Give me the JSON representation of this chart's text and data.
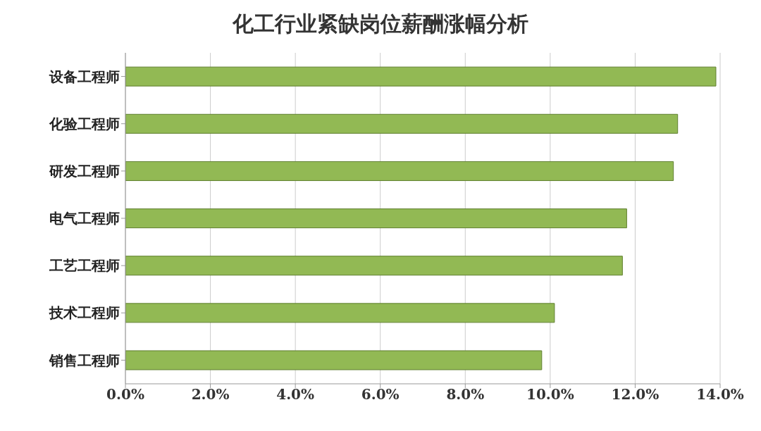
{
  "chart_data": {
    "type": "bar",
    "orientation": "horizontal",
    "title": "化工行业紧缺岗位薪酬涨幅分析",
    "categories": [
      "设备工程师",
      "化验工程师",
      "研发工程师",
      "电气工程师",
      "工艺工程师",
      "技术工程师",
      "销售工程师"
    ],
    "values": [
      13.9,
      13.0,
      12.9,
      11.8,
      11.7,
      10.1,
      9.8
    ],
    "color": "#92b954",
    "xlim": [
      0,
      14
    ],
    "xticks": [
      {
        "value": 0,
        "label": "0.0%"
      },
      {
        "value": 2,
        "label": "2.0%"
      },
      {
        "value": 4,
        "label": "4.0%"
      },
      {
        "value": 6,
        "label": "6.0%"
      },
      {
        "value": 8,
        "label": "8.0%"
      },
      {
        "value": 10,
        "label": "10.0%"
      },
      {
        "value": 12,
        "label": "12.0%"
      },
      {
        "value": 14,
        "label": "14.0%"
      }
    ],
    "grid": "x"
  }
}
